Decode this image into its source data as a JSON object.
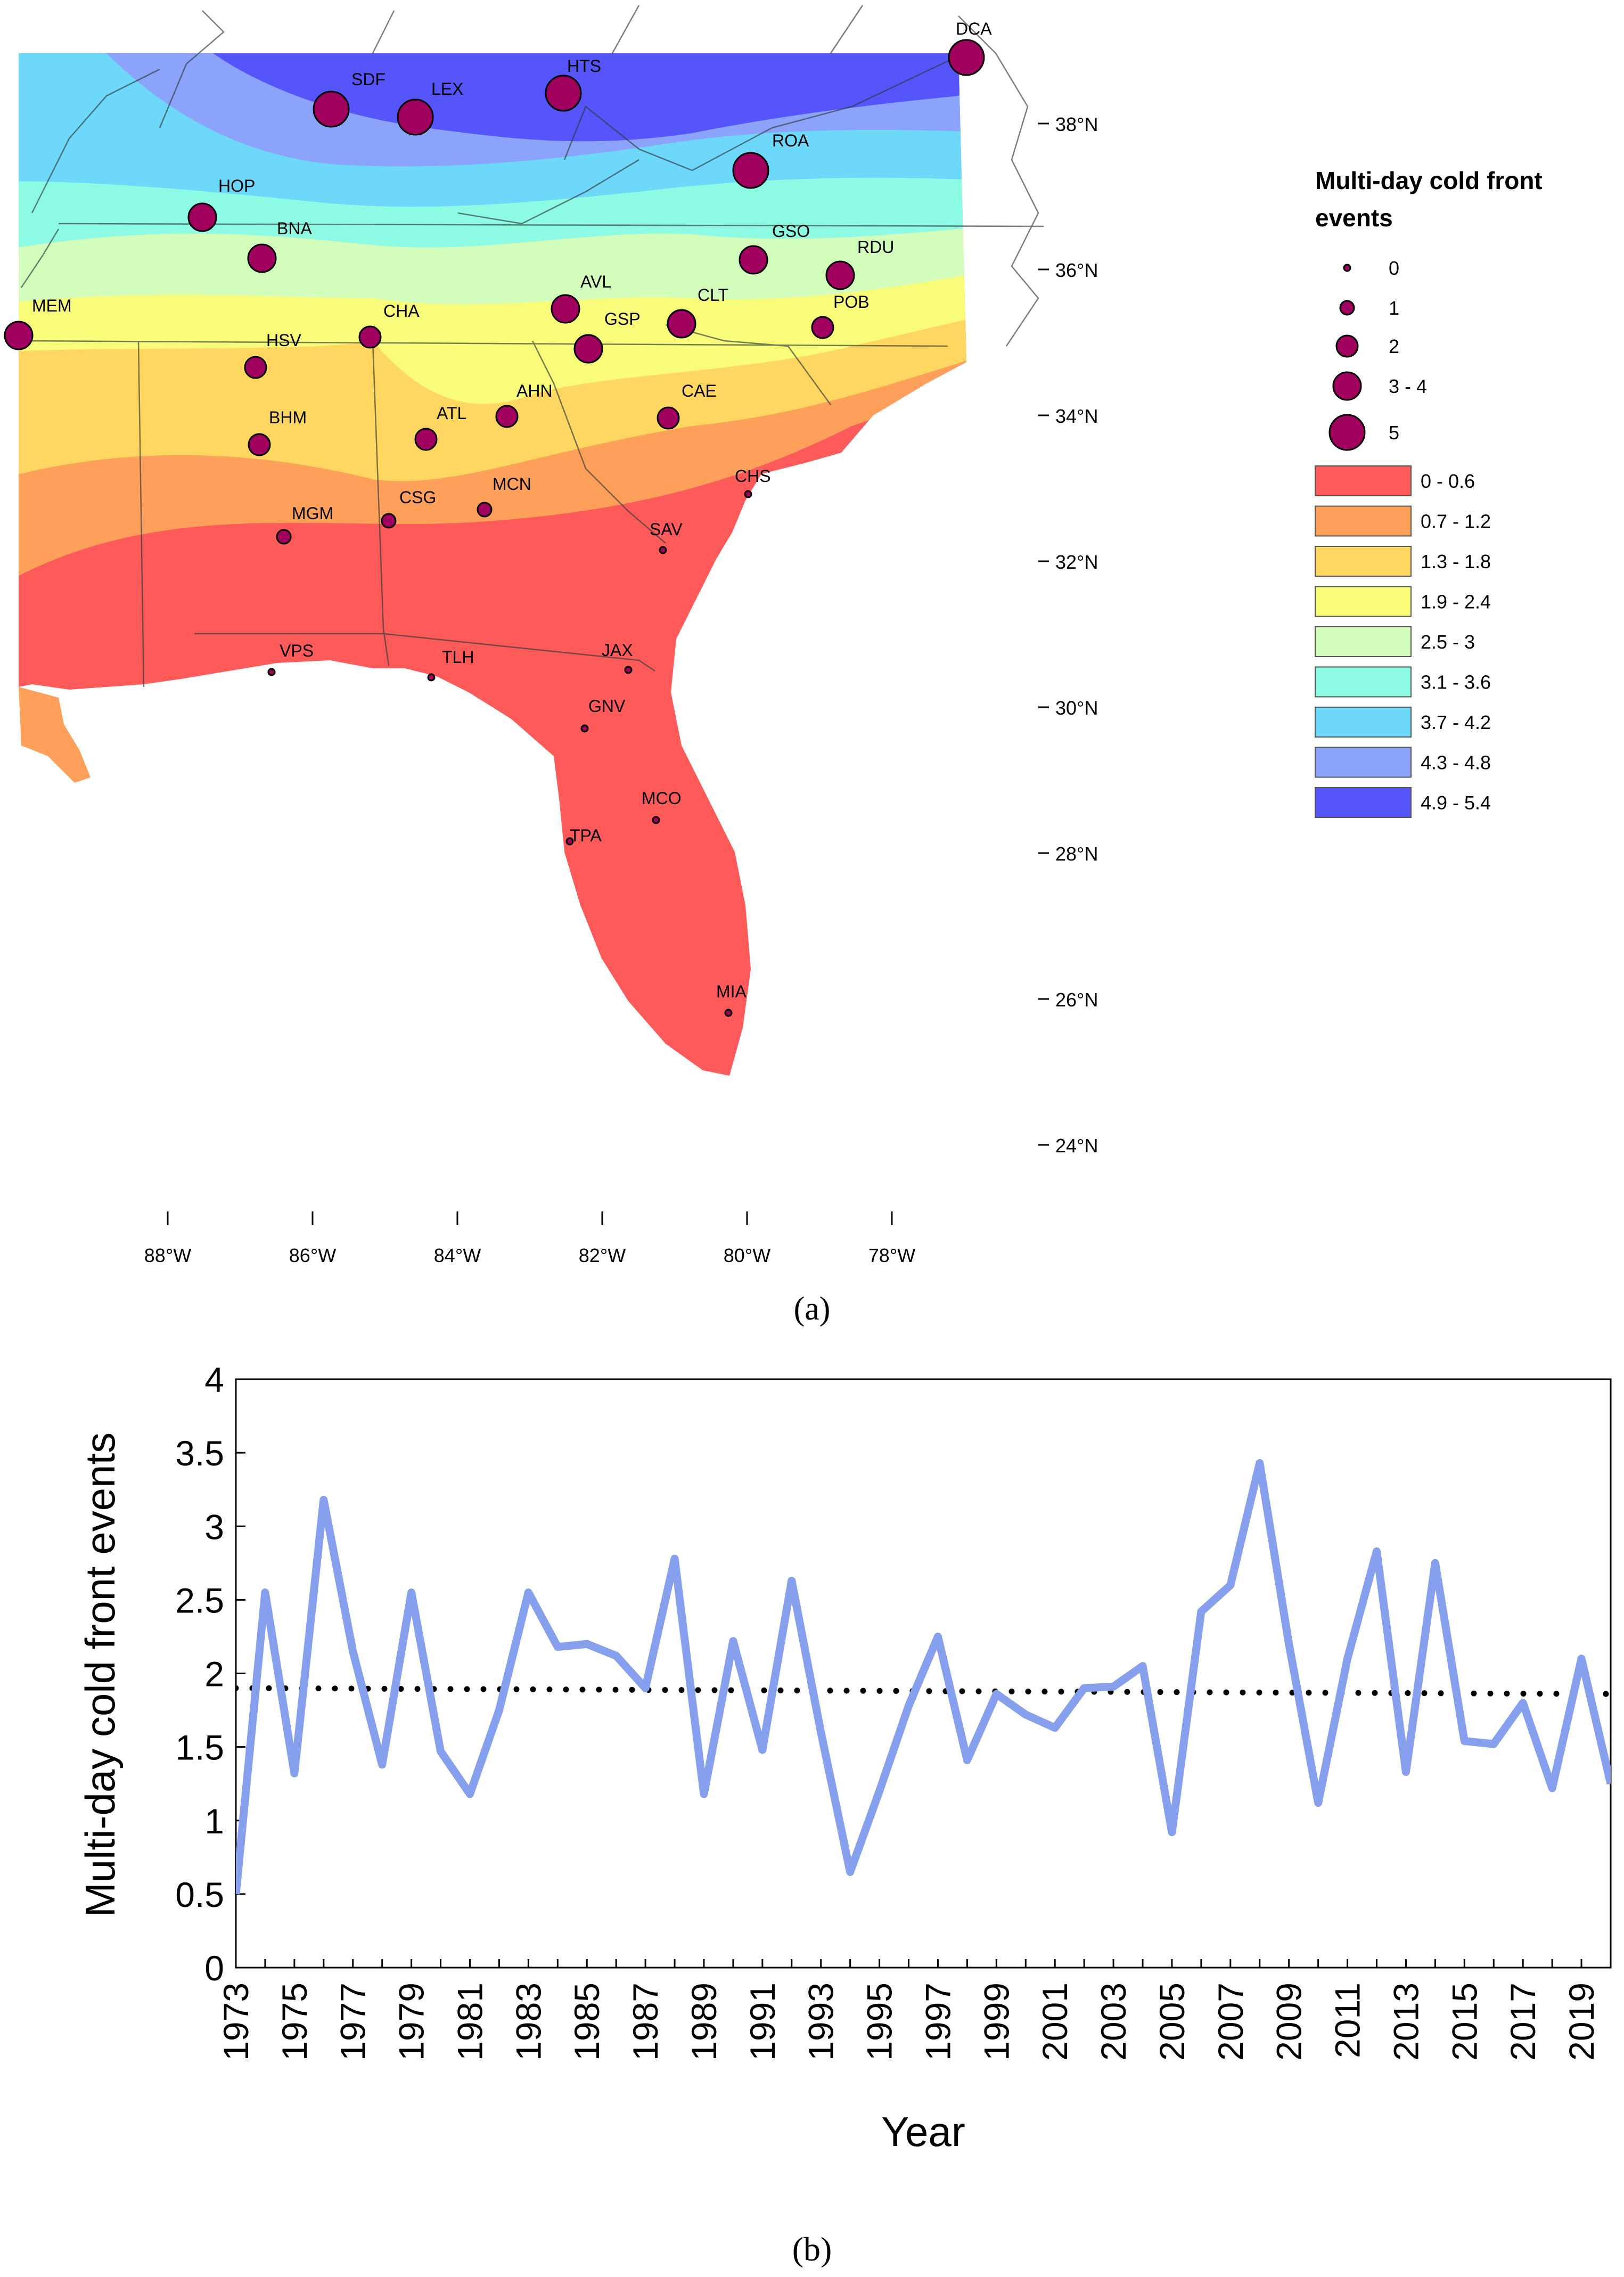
{
  "panel_a": {
    "label": "(a)",
    "lat_ticks": [
      "38°N",
      "36°N",
      "34°N",
      "32°N",
      "30°N",
      "28°N",
      "26°N",
      "24°N"
    ],
    "lon_ticks": [
      "88°W",
      "86°W",
      "84°W",
      "82°W",
      "80°W",
      "78°W"
    ],
    "stations": [
      {
        "code": "DCA",
        "events": 5
      },
      {
        "code": "SDF",
        "events": 5
      },
      {
        "code": "LEX",
        "events": 5
      },
      {
        "code": "HTS",
        "events": 5
      },
      {
        "code": "ROA",
        "events": 5
      },
      {
        "code": "HOP",
        "events": 3
      },
      {
        "code": "BNA",
        "events": 3
      },
      {
        "code": "GSO",
        "events": 3
      },
      {
        "code": "RDU",
        "events": 3
      },
      {
        "code": "MEM",
        "events": 3
      },
      {
        "code": "AVL",
        "events": 3
      },
      {
        "code": "CLT",
        "events": 3
      },
      {
        "code": "POB",
        "events": 2
      },
      {
        "code": "CHA",
        "events": 2
      },
      {
        "code": "GSP",
        "events": 3
      },
      {
        "code": "HSV",
        "events": 2
      },
      {
        "code": "CAE",
        "events": 2
      },
      {
        "code": "AHN",
        "events": 2
      },
      {
        "code": "BHM",
        "events": 2
      },
      {
        "code": "ATL",
        "events": 2
      },
      {
        "code": "CHS",
        "events": 0
      },
      {
        "code": "MCN",
        "events": 1
      },
      {
        "code": "CSG",
        "events": 1
      },
      {
        "code": "MGM",
        "events": 1
      },
      {
        "code": "SAV",
        "events": 0
      },
      {
        "code": "VPS",
        "events": 0
      },
      {
        "code": "TLH",
        "events": 0
      },
      {
        "code": "JAX",
        "events": 0
      },
      {
        "code": "GNV",
        "events": 0
      },
      {
        "code": "MCO",
        "events": 0
      },
      {
        "code": "TPA",
        "events": 0
      },
      {
        "code": "MIA",
        "events": 0
      }
    ],
    "legend": {
      "title_line1": "Multi-day cold front",
      "title_line2": "events",
      "size_classes": [
        "0",
        "1",
        "2",
        "3 - 4",
        "5"
      ],
      "color_classes": [
        {
          "label": "0 - 0.6",
          "color": "#ff5a5a"
        },
        {
          "label": "0.7 - 1.2",
          "color": "#fea059"
        },
        {
          "label": "1.3 - 1.8",
          "color": "#ffd65f"
        },
        {
          "label": "1.9 - 2.4",
          "color": "#f8fc78"
        },
        {
          "label": "2.5 - 3",
          "color": "#d3fdba"
        },
        {
          "label": "3.1 - 3.6",
          "color": "#8dfbe3"
        },
        {
          "label": "3.7 - 4.2",
          "color": "#6ed8fb"
        },
        {
          "label": "4.3 - 4.8",
          "color": "#8ca3fb"
        },
        {
          "label": "4.9 - 5.4",
          "color": "#5555fb"
        }
      ]
    },
    "station_color": "#a0005e"
  },
  "chart_data": {
    "type": "line",
    "panel_label": "(b)",
    "title": "",
    "xlabel": "Year",
    "ylabel": "Multi-day cold front events",
    "xlim": [
      1973,
      2020
    ],
    "ylim": [
      0,
      4
    ],
    "yticks": [
      "0",
      "0.5",
      "1",
      "1.5",
      "2",
      "2.5",
      "3",
      "3.5",
      "4"
    ],
    "xtick_labels": [
      "1973",
      "1975",
      "1977",
      "1979",
      "1981",
      "1983",
      "1985",
      "1987",
      "1989",
      "1991",
      "1993",
      "1995",
      "1997",
      "1999",
      "2001",
      "2003",
      "2005",
      "2007",
      "2009",
      "2011",
      "2013",
      "2015",
      "2017",
      "2019"
    ],
    "series": [
      {
        "name": "Multi-day cold front events",
        "color": "#87a0ee",
        "x": [
          1973,
          1974,
          1975,
          1976,
          1977,
          1978,
          1979,
          1980,
          1981,
          1982,
          1983,
          1984,
          1985,
          1986,
          1987,
          1988,
          1989,
          1990,
          1991,
          1992,
          1993,
          1994,
          1995,
          1996,
          1997,
          1998,
          1999,
          2000,
          2001,
          2002,
          2003,
          2004,
          2005,
          2006,
          2007,
          2008,
          2009,
          2010,
          2011,
          2012,
          2013,
          2014,
          2015,
          2016,
          2017,
          2018,
          2019,
          2020
        ],
        "values": [
          0.5,
          2.55,
          1.32,
          3.18,
          2.15,
          1.38,
          2.55,
          1.47,
          1.18,
          1.75,
          2.55,
          2.18,
          2.2,
          2.12,
          1.9,
          2.78,
          1.18,
          2.22,
          1.48,
          2.63,
          1.6,
          0.65,
          1.2,
          1.78,
          2.25,
          1.41,
          1.86,
          1.72,
          1.63,
          1.9,
          1.91,
          2.05,
          0.92,
          2.42,
          2.6,
          3.43,
          2.2,
          1.12,
          2.1,
          2.83,
          1.33,
          2.75,
          1.54,
          1.52,
          1.8,
          1.22,
          2.1,
          1.25
        ]
      },
      {
        "name": "Trend",
        "style": "dotted",
        "color": "#000000",
        "x": [
          1973,
          2020
        ],
        "values": [
          1.9,
          1.86
        ]
      }
    ]
  }
}
